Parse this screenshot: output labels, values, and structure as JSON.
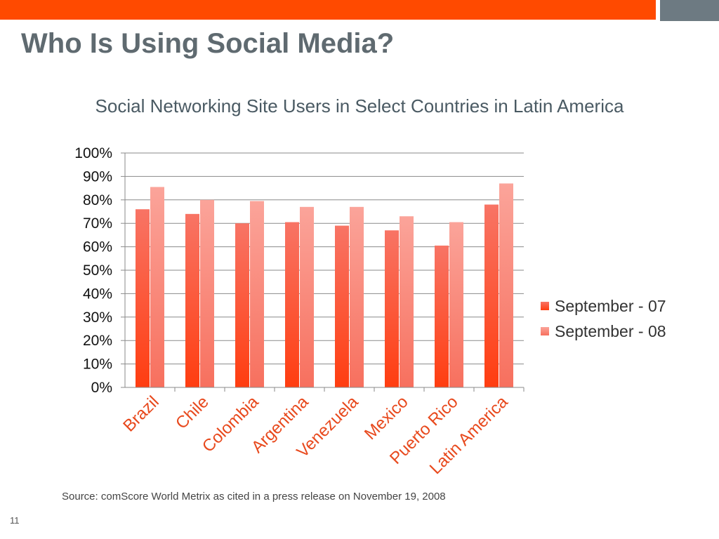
{
  "slide": {
    "title": "Who Is Using Social Media?",
    "source": "Source: comScore World Metrix as cited in a press release on November 19, 2008",
    "page_number": "11"
  },
  "colors": {
    "top_bar": "#ff4a00",
    "top_block": "#6d7a82",
    "series_1_top": "#f87465",
    "series_1_bottom": "#ff3d10",
    "series_2_top": "#fba49a",
    "series_2_bottom": "#f7705e",
    "category_labels": "#e8491d"
  },
  "chart_data": {
    "type": "bar",
    "title": "Social Networking Site Users in Select Countries in Latin America",
    "xlabel": "",
    "ylabel": "",
    "ylim": [
      0,
      100
    ],
    "yticks": [
      "0%",
      "10%",
      "20%",
      "30%",
      "40%",
      "50%",
      "60%",
      "70%",
      "80%",
      "90%",
      "100%"
    ],
    "grid": true,
    "legend_position": "right",
    "categories": [
      "Brazil",
      "Chile",
      "Colombia",
      "Argentina",
      "Venezuela",
      "Mexico",
      "Puerto Rico",
      "Latin America"
    ],
    "series": [
      {
        "name": "September - 07",
        "values": [
          76,
          74,
          70,
          70.5,
          69,
          67,
          60.5,
          78
        ]
      },
      {
        "name": "September - 08",
        "values": [
          85.5,
          80,
          79.5,
          77,
          77,
          73,
          70.5,
          87
        ]
      }
    ]
  }
}
